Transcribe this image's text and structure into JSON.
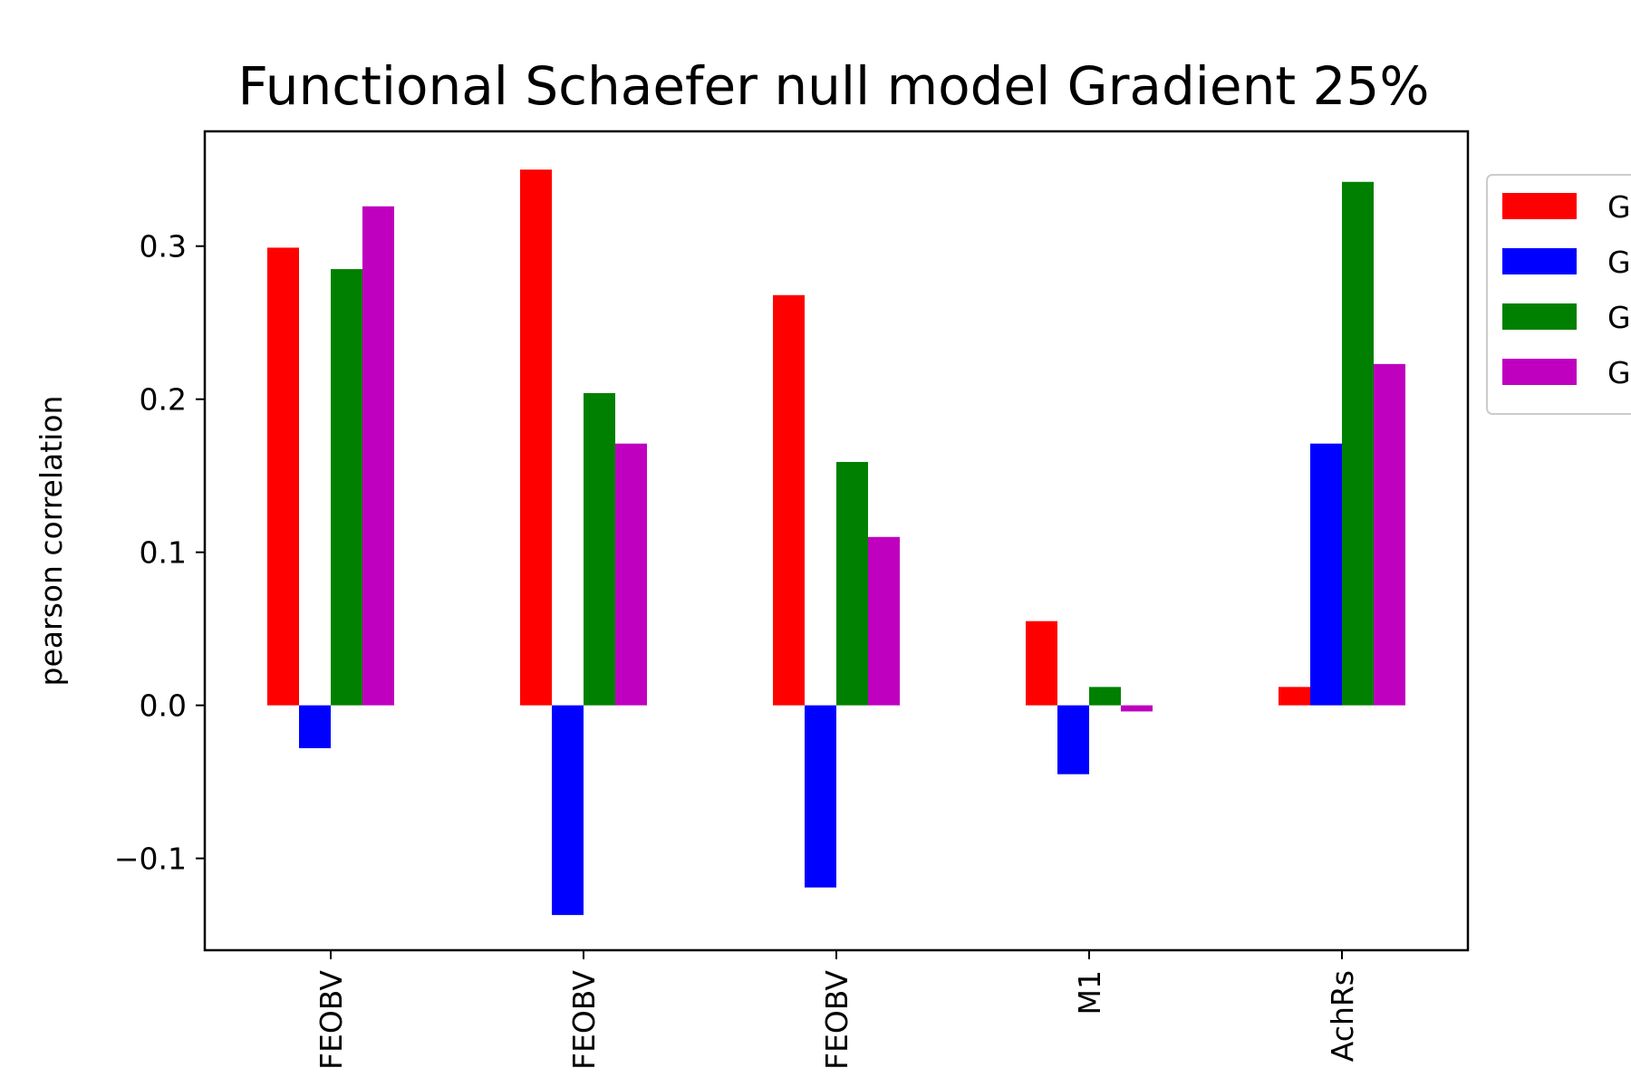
{
  "chart_data": {
    "type": "bar",
    "title": "Functional Schaefer null model Gradient 25%",
    "ylabel": "pearson correlation",
    "xlabel": "",
    "ylim": [
      -0.16,
      0.375
    ],
    "yticks": [
      -0.1,
      0.0,
      0.1,
      0.2,
      0.3
    ],
    "ytick_labels": [
      "−0.1",
      "0.0",
      "0.1",
      "0.2",
      "0.3"
    ],
    "categories": [
      "FEOBV",
      "FEOBV",
      "FEOBV",
      "M1",
      "AchRs"
    ],
    "series": [
      {
        "name": "G",
        "color": "#ff0000",
        "values": [
          0.299,
          0.35,
          0.268,
          0.055,
          0.012
        ]
      },
      {
        "name": "G",
        "color": "#0000ff",
        "values": [
          -0.028,
          -0.137,
          -0.119,
          -0.045,
          0.171
        ]
      },
      {
        "name": "G",
        "color": "#008000",
        "values": [
          0.285,
          0.204,
          0.159,
          0.012,
          0.342
        ]
      },
      {
        "name": "G",
        "color": "#bf00bf",
        "values": [
          0.326,
          0.171,
          0.11,
          -0.004,
          0.223
        ]
      }
    ],
    "legend": {
      "location": "upper-right-outside"
    },
    "grid": false
  }
}
